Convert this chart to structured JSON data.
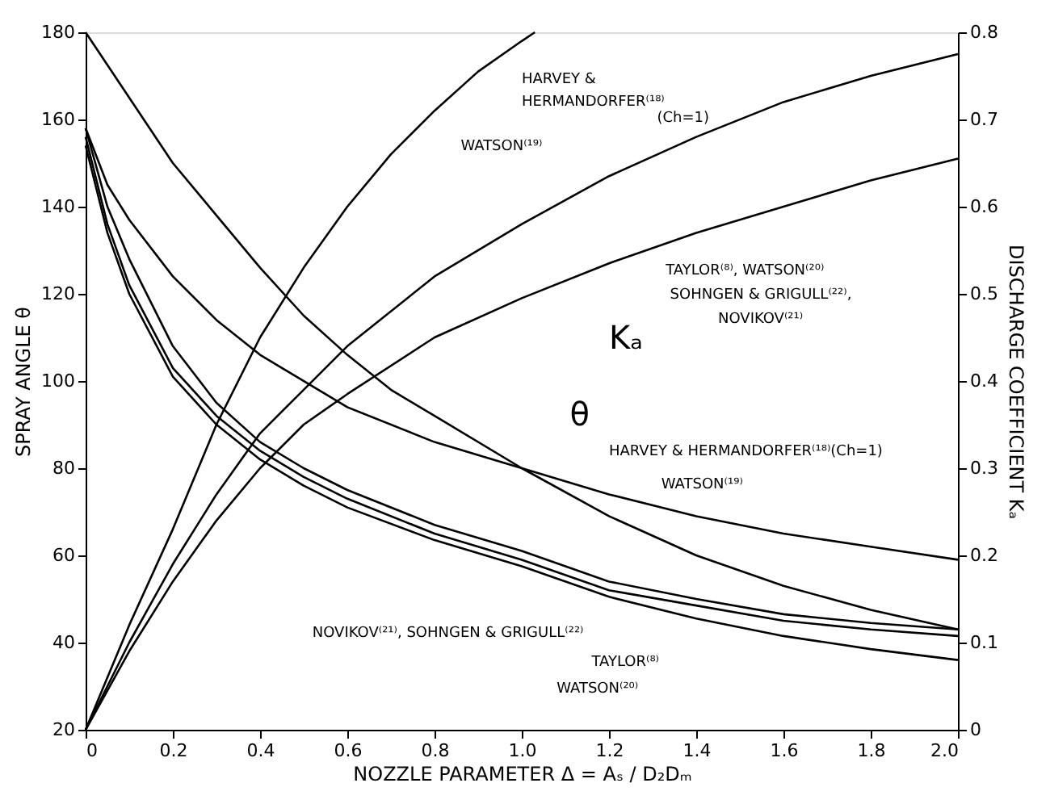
{
  "chart_data": {
    "type": "line",
    "xlabel": "NOZZLE PARAMETER  Δ = Aₛ / D₂Dₘ",
    "ylabel": "SPRAY ANGLE θ",
    "y2label": "DISCHARGE COEFFICIENT Kₐ",
    "xlim": [
      0,
      2.0
    ],
    "xticks": [
      0,
      {
        "value": 0.2,
        "label": "0.2"
      },
      {
        "value": 0.4,
        "label": "0.4"
      },
      {
        "value": 0.6,
        "label": "0.6"
      },
      {
        "value": 0.8,
        "label": "0.8"
      },
      {
        "value": 1.0,
        "label": "1.0"
      },
      {
        "value": 1.2,
        "label": "1.2"
      },
      {
        "value": 1.4,
        "label": "1.4"
      },
      {
        "value": 1.6,
        "label": "1.6"
      },
      {
        "value": 1.8,
        "label": "1.8"
      },
      {
        "value": 2.0,
        "label": "2.0"
      }
    ],
    "ylim": [
      20,
      180
    ],
    "yticks": [
      20,
      40,
      60,
      80,
      100,
      120,
      140,
      160,
      180
    ],
    "y2lim": [
      0,
      0.8
    ],
    "y2ticks": [
      0,
      0.1,
      0.2,
      0.3,
      0.4,
      0.5,
      0.6,
      0.7,
      0.8
    ],
    "grid": false,
    "legend": false,
    "line_style": "solid",
    "series": [
      {
        "color": "#000000",
        "x": [
          0,
          0.1,
          0.2,
          0.3,
          0.4,
          0.5,
          0.6,
          0.7,
          0.8,
          1.0,
          1.2,
          1.4,
          1.6,
          1.8,
          2.0
        ],
        "values": [
          180,
          165,
          150,
          138,
          126,
          115,
          106,
          98,
          92,
          80,
          69,
          60,
          53,
          47.5,
          43
        ]
      },
      {
        "color": "#000000",
        "x": [
          0,
          0.05,
          0.1,
          0.2,
          0.3,
          0.4,
          0.6,
          0.8,
          1.0,
          1.2,
          1.4,
          1.6,
          1.8,
          2.0
        ],
        "values": [
          158,
          145,
          137,
          124,
          114,
          106,
          94,
          86,
          80,
          74,
          69,
          65,
          62,
          59
        ]
      },
      {
        "color": "#000000",
        "x": [
          0,
          0.05,
          0.1,
          0.2,
          0.3,
          0.4,
          0.5,
          0.6,
          0.8,
          1.0,
          1.2,
          1.4,
          1.6,
          1.8,
          2.0
        ],
        "values": [
          158,
          140,
          128,
          108,
          95,
          86,
          80,
          75,
          67,
          61,
          54,
          50,
          46.5,
          44.5,
          43
        ]
      },
      {
        "color": "#000000",
        "x": [
          0,
          0.05,
          0.1,
          0.2,
          0.3,
          0.4,
          0.5,
          0.6,
          0.8,
          1.0,
          1.2,
          1.4,
          1.6,
          1.8,
          2.0
        ],
        "values": [
          156,
          136,
          122,
          103,
          92,
          84,
          78,
          73,
          65,
          59,
          52,
          48.5,
          45,
          43,
          41.5
        ]
      },
      {
        "color": "#000000",
        "x": [
          0,
          0.05,
          0.1,
          0.2,
          0.3,
          0.4,
          0.5,
          0.6,
          0.8,
          1.0,
          1.2,
          1.4,
          1.6,
          1.8,
          2.0
        ],
        "values": [
          154,
          134,
          120,
          101,
          90,
          82,
          76,
          71,
          63.5,
          57.5,
          50.5,
          45.5,
          41.5,
          38.5,
          36
        ]
      },
      {
        "color": "#000000",
        "axis": "y2",
        "x": [
          0,
          0.1,
          0.2,
          0.3,
          0.4,
          0.5,
          0.6,
          0.7,
          0.8,
          0.9,
          1.0,
          1.03
        ],
        "values": [
          0,
          0.12,
          0.23,
          0.35,
          0.45,
          0.53,
          0.6,
          0.66,
          0.71,
          0.755,
          0.79,
          0.8
        ]
      },
      {
        "color": "#000000",
        "axis": "y2",
        "x": [
          0,
          0.1,
          0.2,
          0.3,
          0.4,
          0.5,
          0.6,
          0.8,
          1.0,
          1.2,
          1.4,
          1.6,
          1.8,
          2.0
        ],
        "values": [
          0,
          0.1,
          0.19,
          0.27,
          0.34,
          0.39,
          0.44,
          0.52,
          0.58,
          0.635,
          0.68,
          0.72,
          0.75,
          0.775
        ]
      },
      {
        "color": "#000000",
        "axis": "y2",
        "x": [
          0,
          0.1,
          0.2,
          0.3,
          0.4,
          0.5,
          0.6,
          0.8,
          1.0,
          1.2,
          1.4,
          1.6,
          1.8,
          2.0
        ],
        "values": [
          0,
          0.09,
          0.17,
          0.24,
          0.3,
          0.35,
          0.385,
          0.45,
          0.495,
          0.535,
          0.57,
          0.6,
          0.63,
          0.655
        ]
      }
    ],
    "annotations": [
      "HARVEY &",
      "HERMANDORFER⁽¹⁸⁾",
      "(Ch=1)",
      "WATSON⁽¹⁹⁾",
      "TAYLOR⁽⁸⁾, WATSON⁽²⁰⁾",
      "SOHNGEN & GRIGULL⁽²²⁾,",
      "NOVIKOV⁽²¹⁾",
      "Kₐ",
      "θ",
      "HARVEY & HERMANDORFER⁽¹⁸⁾(Ch=1)",
      "WATSON⁽¹⁹⁾",
      "NOVIKOV⁽²¹⁾, SOHNGEN & GRIGULL⁽²²⁾",
      "TAYLOR⁽⁸⁾",
      "WATSON⁽²⁰⁾"
    ]
  }
}
